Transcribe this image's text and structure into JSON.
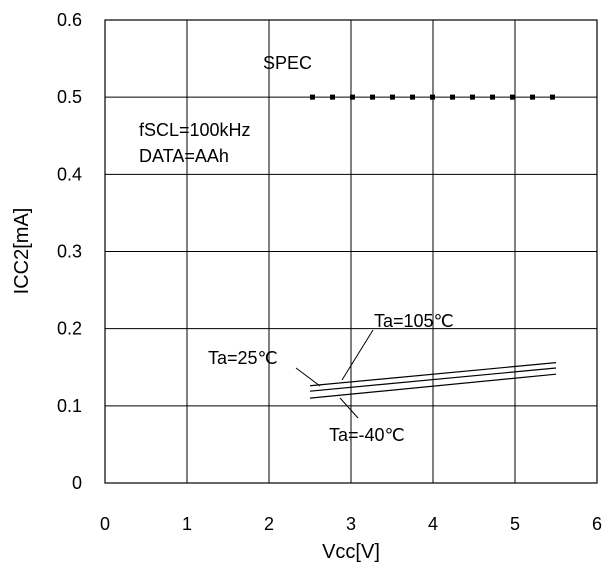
{
  "chart_data": {
    "type": "line",
    "xlabel": "Vcc[V]",
    "ylabel": "ICC2[mA]",
    "xlim": [
      0,
      6
    ],
    "ylim": [
      0,
      0.6
    ],
    "xticks": [
      "0",
      "1",
      "2",
      "3",
      "4",
      "5",
      "6"
    ],
    "yticks": [
      "0",
      "0.1",
      "0.2",
      "0.3",
      "0.4",
      "0.5",
      "0.6"
    ],
    "grid": true,
    "spec": {
      "label": "SPEC",
      "y": 0.5,
      "x_start": 2.5,
      "x_end": 5.5,
      "style": "dotted"
    },
    "conditions": [
      "fSCL=100kHz",
      "DATA=AAh"
    ],
    "series": [
      {
        "name": "Ta=105℃",
        "x": [
          2.5,
          5.5
        ],
        "y": [
          0.126,
          0.156
        ]
      },
      {
        "name": "Ta=25℃",
        "x": [
          2.5,
          5.5
        ],
        "y": [
          0.119,
          0.149
        ]
      },
      {
        "name": "Ta=-40℃",
        "x": [
          2.5,
          5.5
        ],
        "y": [
          0.11,
          0.141
        ]
      }
    ]
  }
}
